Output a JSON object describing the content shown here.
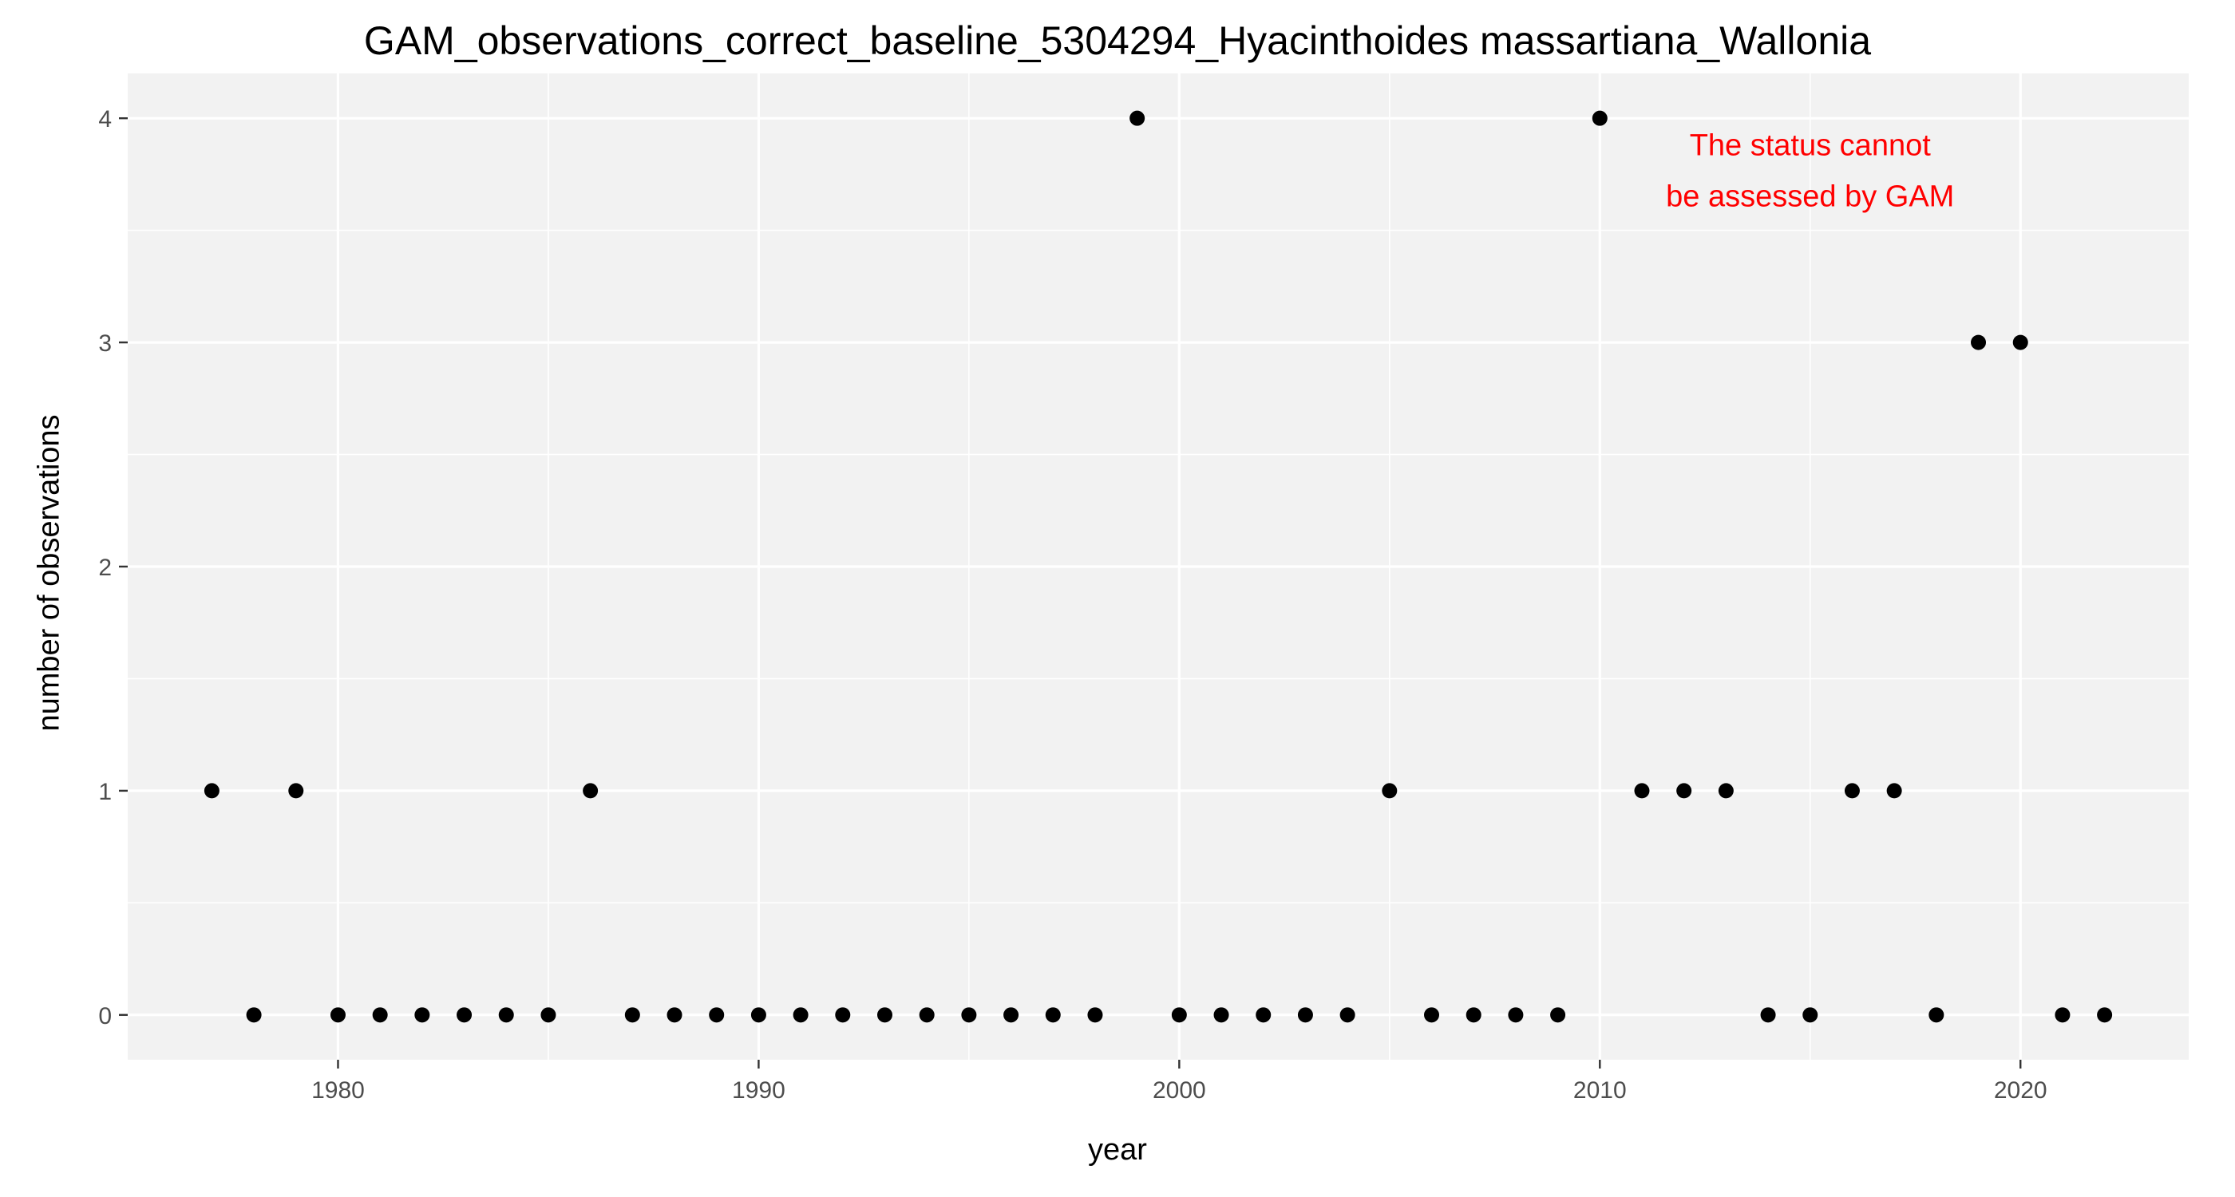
{
  "chart_data": {
    "type": "scatter",
    "title": "GAM_observations_correct_baseline_5304294_Hyacinthoides massartiana_Wallonia",
    "xlabel": "year",
    "ylabel": "number of observations",
    "xlim": [
      1975,
      2024
    ],
    "ylim": [
      -0.2,
      4.2
    ],
    "x_ticks": [
      1980,
      1990,
      2000,
      2010,
      2020
    ],
    "y_ticks": [
      0,
      1,
      2,
      3,
      4
    ],
    "grid": true,
    "annotation": {
      "lines": [
        "The status cannot",
        "be assessed by GAM"
      ],
      "color": "#ff0000",
      "x": 2015,
      "y": 3.75
    },
    "point_color": "#000000",
    "points": [
      {
        "x": 1977,
        "y": 1
      },
      {
        "x": 1978,
        "y": 0
      },
      {
        "x": 1979,
        "y": 1
      },
      {
        "x": 1980,
        "y": 0
      },
      {
        "x": 1981,
        "y": 0
      },
      {
        "x": 1982,
        "y": 0
      },
      {
        "x": 1983,
        "y": 0
      },
      {
        "x": 1984,
        "y": 0
      },
      {
        "x": 1985,
        "y": 0
      },
      {
        "x": 1986,
        "y": 1
      },
      {
        "x": 1987,
        "y": 0
      },
      {
        "x": 1988,
        "y": 0
      },
      {
        "x": 1989,
        "y": 0
      },
      {
        "x": 1990,
        "y": 0
      },
      {
        "x": 1991,
        "y": 0
      },
      {
        "x": 1992,
        "y": 0
      },
      {
        "x": 1993,
        "y": 0
      },
      {
        "x": 1994,
        "y": 0
      },
      {
        "x": 1995,
        "y": 0
      },
      {
        "x": 1996,
        "y": 0
      },
      {
        "x": 1997,
        "y": 0
      },
      {
        "x": 1998,
        "y": 0
      },
      {
        "x": 1999,
        "y": 4
      },
      {
        "x": 2000,
        "y": 0
      },
      {
        "x": 2001,
        "y": 0
      },
      {
        "x": 2002,
        "y": 0
      },
      {
        "x": 2003,
        "y": 0
      },
      {
        "x": 2004,
        "y": 0
      },
      {
        "x": 2005,
        "y": 1
      },
      {
        "x": 2006,
        "y": 0
      },
      {
        "x": 2007,
        "y": 0
      },
      {
        "x": 2008,
        "y": 0
      },
      {
        "x": 2009,
        "y": 0
      },
      {
        "x": 2010,
        "y": 4
      },
      {
        "x": 2011,
        "y": 1
      },
      {
        "x": 2012,
        "y": 1
      },
      {
        "x": 2013,
        "y": 1
      },
      {
        "x": 2014,
        "y": 0
      },
      {
        "x": 2015,
        "y": 0
      },
      {
        "x": 2016,
        "y": 1
      },
      {
        "x": 2017,
        "y": 1
      },
      {
        "x": 2018,
        "y": 0
      },
      {
        "x": 2019,
        "y": 3
      },
      {
        "x": 2020,
        "y": 3
      },
      {
        "x": 2021,
        "y": 0
      },
      {
        "x": 2022,
        "y": 0
      }
    ]
  }
}
